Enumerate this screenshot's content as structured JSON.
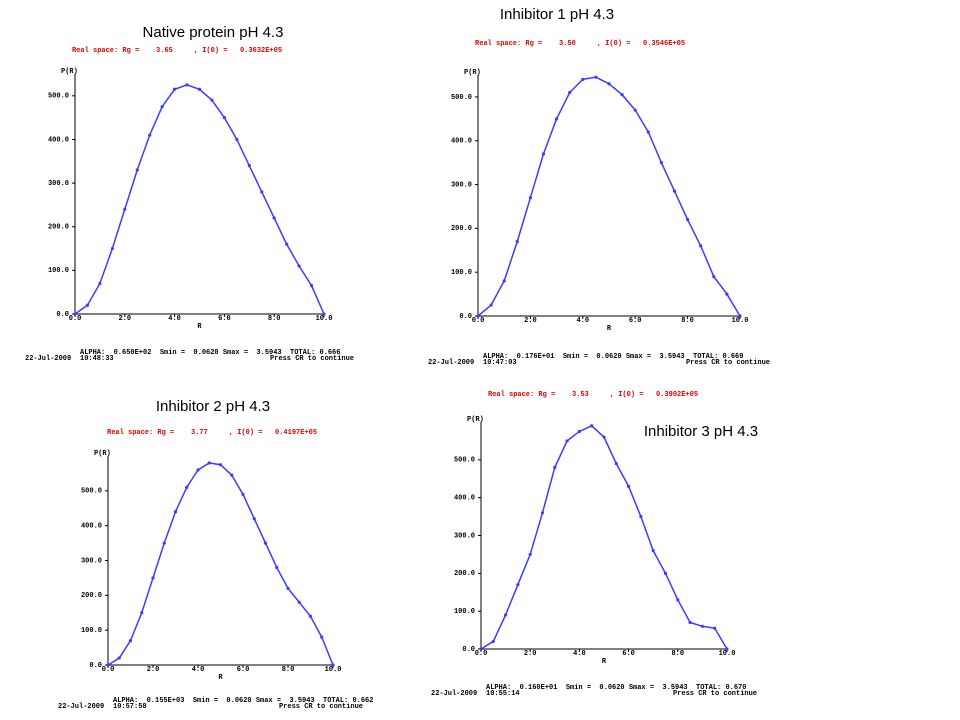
{
  "chart_data": [
    {
      "type": "line",
      "title": "Native protein pH 4.3",
      "subtitle": "Real space: Rg =    3.65     , I(0) =   0.3632E+05",
      "ylabel": "P(R)",
      "xlabel": "R",
      "x": [
        0,
        0.5,
        1,
        1.5,
        2,
        2.5,
        3,
        3.5,
        4,
        4.5,
        5,
        5.5,
        6,
        6.5,
        7,
        7.5,
        8,
        8.5,
        9,
        9.5,
        10
      ],
      "values": [
        0,
        20,
        70,
        150,
        240,
        330,
        410,
        475,
        515,
        525,
        515,
        490,
        450,
        400,
        340,
        280,
        220,
        160,
        110,
        65,
        0
      ],
      "color": "#3c3cff",
      "xlim": [
        0,
        10
      ],
      "ylim": [
        0,
        550
      ],
      "xticks": [
        {
          "value": 0,
          "label": "0.0"
        },
        {
          "value": 2,
          "label": "2.0"
        },
        {
          "value": 4,
          "label": "4.0"
        },
        {
          "value": 6,
          "label": "6.0"
        },
        {
          "value": 8,
          "label": "8.0"
        },
        {
          "value": 10,
          "label": "10.0"
        }
      ],
      "yticks": [
        {
          "value": 0,
          "label": "0.0"
        },
        {
          "value": 100,
          "label": "100.0"
        },
        {
          "value": 200,
          "label": "200.0"
        },
        {
          "value": 300,
          "label": "300.0"
        },
        {
          "value": 400,
          "label": "400.0"
        },
        {
          "value": 500,
          "label": "500.0"
        }
      ],
      "fit_summary": "ALPHA:  0.650E+02  Smin =  0.0620 Smax =  3.5943  TOTAL: 0.666",
      "date": "22-Jul-2009",
      "time": "10:48:33",
      "prompt": "Press CR to continue"
    },
    {
      "type": "line",
      "title": "Inhibitor 1 pH 4.3",
      "subtitle": "Real space: Rg =    3.50     , I(0) =   0.3546E+05",
      "ylabel": "P(R)",
      "xlabel": "R",
      "x": [
        0,
        0.5,
        1,
        1.5,
        2,
        2.5,
        3,
        3.5,
        4,
        4.5,
        5,
        5.5,
        6,
        6.5,
        7,
        7.5,
        8,
        8.5,
        9,
        9.5,
        10
      ],
      "values": [
        0,
        25,
        80,
        170,
        270,
        370,
        450,
        510,
        540,
        545,
        530,
        505,
        470,
        420,
        350,
        285,
        220,
        160,
        90,
        50,
        0
      ],
      "color": "#3c3cff",
      "xlim": [
        0,
        10
      ],
      "ylim": [
        0,
        550
      ],
      "xticks": [
        {
          "value": 0,
          "label": "0.0"
        },
        {
          "value": 2,
          "label": "2.0"
        },
        {
          "value": 4,
          "label": "4.0"
        },
        {
          "value": 6,
          "label": "6.0"
        },
        {
          "value": 8,
          "label": "8.0"
        },
        {
          "value": 10,
          "label": "10.0"
        }
      ],
      "yticks": [
        {
          "value": 0,
          "label": "0.0"
        },
        {
          "value": 100,
          "label": "100.0"
        },
        {
          "value": 200,
          "label": "200.0"
        },
        {
          "value": 300,
          "label": "300.0"
        },
        {
          "value": 400,
          "label": "400.0"
        },
        {
          "value": 500,
          "label": "500.0"
        }
      ],
      "fit_summary": "ALPHA:  0.176E+01  Smin =  0.0620 Smax =  3.5943  TOTAL: 0.669",
      "date": "22-Jul-2009",
      "time": "10:47:03",
      "prompt": "Press CR to continue"
    },
    {
      "type": "line",
      "title": "Inhibitor 2 pH 4.3",
      "subtitle": "Real space: Rg =    3.77     , I(0) =   0.4197E+05",
      "ylabel": "P(R)",
      "xlabel": "R",
      "x": [
        0,
        0.5,
        1,
        1.5,
        2,
        2.5,
        3,
        3.5,
        4,
        4.5,
        5,
        5.5,
        6,
        6.5,
        7,
        7.5,
        8,
        8.5,
        9,
        9.5,
        10
      ],
      "values": [
        0,
        20,
        70,
        150,
        250,
        350,
        440,
        510,
        560,
        580,
        575,
        545,
        490,
        420,
        350,
        280,
        220,
        180,
        140,
        80,
        0
      ],
      "color": "#3c3cff",
      "xlim": [
        0,
        10
      ],
      "ylim": [
        0,
        600
      ],
      "xticks": [
        {
          "value": 0,
          "label": "0.0"
        },
        {
          "value": 2,
          "label": "2.0"
        },
        {
          "value": 4,
          "label": "4.0"
        },
        {
          "value": 6,
          "label": "6.0"
        },
        {
          "value": 8,
          "label": "8.0"
        },
        {
          "value": 10,
          "label": "10.0"
        }
      ],
      "yticks": [
        {
          "value": 0,
          "label": "0.0"
        },
        {
          "value": 100,
          "label": "100.0"
        },
        {
          "value": 200,
          "label": "200.0"
        },
        {
          "value": 300,
          "label": "300.0"
        },
        {
          "value": 400,
          "label": "400.0"
        },
        {
          "value": 500,
          "label": "500.0"
        }
      ],
      "fit_summary": "ALPHA:  0.155E+03  Smin =  0.0620 Smax =  3.5943  TOTAL: 0.662",
      "date": "22-Jul-2009",
      "time": "10:57:58",
      "prompt": "Press CR to continue"
    },
    {
      "type": "line",
      "title": "Inhibitor 3 pH 4.3",
      "subtitle": "Real space: Rg =    3.53     , I(0) =   0.3902E+05",
      "ylabel": "P(R)",
      "xlabel": "R",
      "x": [
        0,
        0.5,
        1,
        1.5,
        2,
        2.5,
        3,
        3.5,
        4,
        4.5,
        5,
        5.5,
        6,
        6.5,
        7,
        7.5,
        8,
        8.5,
        9,
        9.5,
        10
      ],
      "values": [
        0,
        20,
        90,
        170,
        250,
        360,
        480,
        550,
        575,
        590,
        560,
        490,
        430,
        350,
        260,
        200,
        130,
        70,
        60,
        55,
        0
      ],
      "color": "#3c3cff",
      "xlim": [
        0,
        10
      ],
      "ylim": [
        0,
        600
      ],
      "xticks": [
        {
          "value": 0,
          "label": "0.0"
        },
        {
          "value": 2,
          "label": "2.0"
        },
        {
          "value": 4,
          "label": "4.0"
        },
        {
          "value": 6,
          "label": "6.0"
        },
        {
          "value": 8,
          "label": "8.0"
        },
        {
          "value": 10,
          "label": "10.0"
        }
      ],
      "yticks": [
        {
          "value": 0,
          "label": "0.0"
        },
        {
          "value": 100,
          "label": "100.0"
        },
        {
          "value": 200,
          "label": "200.0"
        },
        {
          "value": 300,
          "label": "300.0"
        },
        {
          "value": 400,
          "label": "400.0"
        },
        {
          "value": 500,
          "label": "500.0"
        }
      ],
      "fit_summary": "ALPHA:  0.160E+01  Smin =  0.0620 Smax =  3.5943  TOTAL: 0.670",
      "date": "22-Jul-2009",
      "time": "10:55:14",
      "prompt": "Press CR to continue"
    }
  ]
}
